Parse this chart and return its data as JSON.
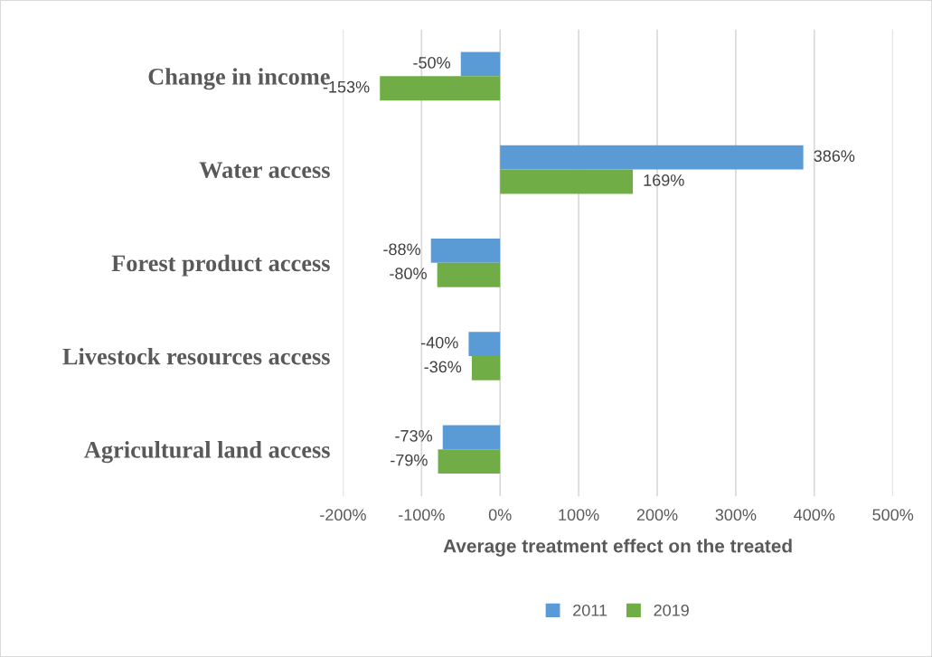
{
  "chart_data": {
    "type": "bar",
    "orientation": "horizontal",
    "categories": [
      "Change in income",
      "Water access",
      "Forest product access",
      "Livestock resources access",
      "Agricultural land access"
    ],
    "series": [
      {
        "name": "2011",
        "color": "#5b9bd5",
        "values": [
          -50,
          386,
          -88,
          -40,
          -73
        ],
        "value_labels": [
          "-50%",
          "386%",
          "-88%",
          "-40%",
          "-73%"
        ]
      },
      {
        "name": "2019",
        "color": "#70ad47",
        "values": [
          -153,
          169,
          -80,
          -36,
          -79
        ],
        "value_labels": [
          "-153%",
          "169%",
          "-80%",
          "-36%",
          "-79%"
        ]
      }
    ],
    "xlabel": "Average treatment effect on the treated",
    "xlim": [
      -200,
      500
    ],
    "xticks": [
      {
        "value": -200,
        "label": "-200%"
      },
      {
        "value": -100,
        "label": "-100%"
      },
      {
        "value": 0,
        "label": "0%"
      },
      {
        "value": 100,
        "label": "100%"
      },
      {
        "value": 200,
        "label": "200%"
      },
      {
        "value": 300,
        "label": "300%"
      },
      {
        "value": 400,
        "label": "400%"
      },
      {
        "value": 500,
        "label": "500%"
      }
    ],
    "grid": "x",
    "legend": "bottom"
  }
}
